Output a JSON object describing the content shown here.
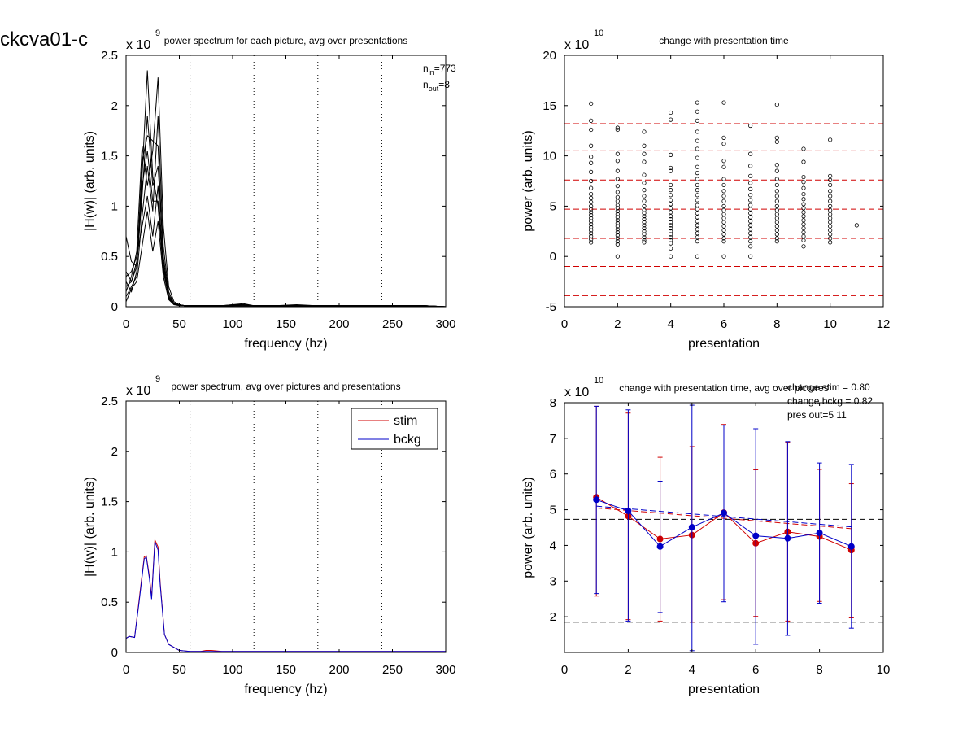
{
  "figure_title": "ckcva01-c",
  "chart_data": [
    {
      "id": "tl",
      "type": "line",
      "title": "power spectrum for each picture, avg over presentations",
      "xlabel": "frequency (hz)",
      "ylabel": "|H(w)| (arb. units)",
      "xlim": [
        0,
        300
      ],
      "ylim": [
        0,
        2.5
      ],
      "x_ticks": [
        "0",
        "50",
        "100",
        "150",
        "200",
        "250",
        "300"
      ],
      "y_ticks": [
        "0",
        "0.5",
        "1",
        "1.5",
        "2",
        "2.5"
      ],
      "y_exponent": "x 10",
      "y_exponent_power": "9",
      "vlines_x": [
        60,
        120,
        180,
        240,
        300
      ],
      "annotations": [
        {
          "base": "n",
          "sub": "in",
          "rest": "=773"
        },
        {
          "base": "n",
          "sub": "out",
          "rest": "=8"
        }
      ],
      "x": [
        0,
        5,
        10,
        15,
        20,
        25,
        30,
        35,
        40,
        45,
        50,
        55,
        60,
        70,
        80,
        90,
        100,
        110,
        120,
        140,
        160,
        180,
        200,
        220,
        240,
        260,
        280,
        300
      ],
      "series": [
        {
          "values": [
            0.35,
            0.25,
            0.45,
            1.3,
            2.35,
            1.3,
            1.0,
            0.35,
            0.1,
            0.03,
            0.02,
            0.01,
            0.01,
            0.01,
            0.01,
            0.01,
            0.01,
            0.02,
            0.01,
            0.01,
            0.01,
            0.01,
            0.01,
            0.01,
            0.01,
            0.01,
            0.01,
            0.0
          ]
        },
        {
          "values": [
            0.15,
            0.3,
            0.55,
            1.6,
            1.2,
            1.55,
            2.28,
            0.8,
            0.2,
            0.05,
            0.02,
            0.01,
            0.01,
            0.01,
            0.01,
            0.01,
            0.02,
            0.03,
            0.01,
            0.01,
            0.01,
            0.01,
            0.01,
            0.01,
            0.01,
            0.01,
            0.01,
            0.0
          ]
        },
        {
          "values": [
            0.7,
            0.45,
            0.4,
            1.1,
            1.9,
            1.2,
            1.4,
            0.5,
            0.12,
            0.03,
            0.02,
            0.01,
            0.01,
            0.01,
            0.01,
            0.01,
            0.01,
            0.02,
            0.01,
            0.01,
            0.02,
            0.01,
            0.01,
            0.01,
            0.01,
            0.01,
            0.01,
            0.0
          ]
        },
        {
          "values": [
            0.1,
            0.2,
            0.3,
            0.9,
            1.4,
            0.95,
            1.9,
            0.6,
            0.15,
            0.03,
            0.02,
            0.01,
            0.01,
            0.01,
            0.01,
            0.01,
            0.01,
            0.01,
            0.01,
            0.01,
            0.01,
            0.01,
            0.01,
            0.01,
            0.01,
            0.01,
            0.01,
            0.0
          ]
        },
        {
          "values": [
            0.25,
            0.15,
            0.35,
            1.45,
            1.7,
            1.65,
            1.6,
            0.45,
            0.08,
            0.02,
            0.02,
            0.01,
            0.01,
            0.01,
            0.01,
            0.01,
            0.02,
            0.02,
            0.01,
            0.01,
            0.01,
            0.01,
            0.01,
            0.01,
            0.01,
            0.01,
            0.01,
            0.0
          ]
        },
        {
          "values": [
            0.3,
            0.35,
            0.5,
            0.8,
            1.1,
            0.7,
            1.2,
            0.4,
            0.1,
            0.03,
            0.02,
            0.01,
            0.01,
            0.01,
            0.01,
            0.01,
            0.01,
            0.01,
            0.01,
            0.01,
            0.01,
            0.01,
            0.01,
            0.01,
            0.01,
            0.01,
            0.01,
            0.0
          ]
        },
        {
          "values": [
            0.2,
            0.25,
            0.4,
            1.2,
            1.55,
            1.05,
            1.05,
            0.38,
            0.09,
            0.02,
            0.02,
            0.01,
            0.01,
            0.01,
            0.01,
            0.01,
            0.01,
            0.01,
            0.01,
            0.01,
            0.01,
            0.01,
            0.01,
            0.01,
            0.01,
            0.01,
            0.01,
            0.0
          ]
        },
        {
          "values": [
            0.05,
            0.18,
            0.25,
            0.6,
            0.95,
            0.55,
            0.85,
            0.3,
            0.07,
            0.02,
            0.01,
            0.01,
            0.01,
            0.01,
            0.01,
            0.01,
            0.01,
            0.01,
            0.01,
            0.01,
            0.01,
            0.01,
            0.01,
            0.01,
            0.01,
            0.01,
            0.01,
            0.0
          ]
        }
      ]
    },
    {
      "id": "tr",
      "type": "scatter",
      "title": "change with presentation time",
      "xlabel": "presentation",
      "ylabel": "power (arb. units)",
      "xlim": [
        0,
        12
      ],
      "ylim": [
        -5,
        20
      ],
      "x_ticks": [
        "0",
        "2",
        "4",
        "6",
        "8",
        "10",
        "12"
      ],
      "y_ticks": [
        "-5",
        "0",
        "5",
        "10",
        "15",
        "20"
      ],
      "y_exponent": "x 10",
      "y_exponent_power": "10",
      "hlines_y": [
        13.2,
        10.5,
        7.6,
        4.7,
        1.8,
        -1.0,
        -3.9
      ],
      "points": [
        {
          "x": 1,
          "values": [
            15.2,
            13.5,
            12.6,
            11.0,
            9.9,
            9.3,
            8.4,
            7.5,
            6.8,
            6.2,
            5.8,
            5.4,
            5.0,
            4.7,
            4.4,
            4.1,
            3.8,
            3.5,
            3.2,
            2.9,
            2.6,
            2.3,
            2.0,
            1.7,
            1.4
          ]
        },
        {
          "x": 2,
          "values": [
            12.8,
            12.6,
            10.2,
            9.5,
            8.5,
            7.7,
            7.0,
            6.4,
            5.9,
            5.5,
            5.1,
            4.8,
            4.5,
            4.2,
            3.9,
            3.6,
            3.3,
            3.0,
            2.7,
            2.4,
            2.1,
            1.8,
            1.5,
            1.2,
            0.0
          ]
        },
        {
          "x": 3,
          "values": [
            12.4,
            11.0,
            10.2,
            9.4,
            8.1,
            7.3,
            6.6,
            6.0,
            5.5,
            5.0,
            4.6,
            4.3,
            4.0,
            3.7,
            3.4,
            3.1,
            2.8,
            2.5,
            2.2,
            1.9,
            1.6,
            1.4
          ]
        },
        {
          "x": 4,
          "values": [
            14.3,
            13.6,
            10.1,
            8.8,
            8.5,
            7.1,
            6.6,
            6.1,
            5.6,
            5.2,
            4.8,
            4.4,
            4.0,
            3.7,
            3.4,
            3.1,
            2.8,
            2.5,
            2.2,
            1.9,
            1.6,
            1.3,
            0.8,
            0.0
          ]
        },
        {
          "x": 5,
          "values": [
            15.3,
            14.4,
            13.5,
            12.4,
            11.5,
            10.7,
            9.8,
            8.9,
            8.3,
            7.7,
            7.1,
            6.6,
            6.1,
            5.6,
            5.1,
            4.7,
            4.3,
            3.9,
            3.5,
            3.1,
            2.7,
            2.3,
            1.9,
            1.5,
            0.0
          ]
        },
        {
          "x": 6,
          "values": [
            15.3,
            11.8,
            11.2,
            9.5,
            8.9,
            7.7,
            7.1,
            6.5,
            6.0,
            5.5,
            5.0,
            4.6,
            4.2,
            3.8,
            3.4,
            3.0,
            2.6,
            2.2,
            1.8,
            1.5,
            0.0
          ]
        },
        {
          "x": 7,
          "values": [
            13.0,
            10.2,
            9.0,
            8.0,
            7.3,
            6.7,
            6.1,
            5.6,
            5.1,
            4.7,
            4.3,
            3.9,
            3.5,
            3.1,
            2.7,
            2.3,
            1.9,
            1.5,
            1.0,
            0.0
          ]
        },
        {
          "x": 8,
          "values": [
            15.1,
            11.8,
            11.4,
            9.1,
            8.5,
            7.7,
            7.1,
            6.5,
            6.0,
            5.5,
            5.0,
            4.6,
            4.2,
            3.8,
            3.4,
            3.0,
            2.6,
            2.2,
            1.8,
            1.5
          ]
        },
        {
          "x": 9,
          "values": [
            10.7,
            9.4,
            7.9,
            7.4,
            6.8,
            6.2,
            5.7,
            5.2,
            4.8,
            4.4,
            4.0,
            3.6,
            3.2,
            2.8,
            2.4,
            2.0,
            1.6,
            1.0
          ]
        },
        {
          "x": 10,
          "values": [
            11.6,
            8.0,
            7.6,
            7.1,
            6.5,
            6.0,
            5.5,
            5.0,
            4.6,
            4.2,
            3.8,
            3.4,
            3.0,
            2.6,
            2.2,
            1.8,
            1.4
          ]
        },
        {
          "x": 11,
          "values": [
            3.1
          ]
        }
      ]
    },
    {
      "id": "bl",
      "type": "line",
      "title": "power spectrum, avg over pictures and presentations",
      "xlabel": "frequency (hz)",
      "ylabel": "|H(w)| (arb. units)",
      "xlim": [
        0,
        300
      ],
      "ylim": [
        0,
        2.5
      ],
      "x_ticks": [
        "0",
        "50",
        "100",
        "150",
        "200",
        "250",
        "300"
      ],
      "y_ticks": [
        "0",
        "0.5",
        "1",
        "1.5",
        "2",
        "2.5"
      ],
      "y_exponent": "x 10",
      "y_exponent_power": "9",
      "vlines_x": [
        60,
        120,
        180,
        240,
        300
      ],
      "legend": [
        "stim",
        "bckg"
      ],
      "x": [
        0,
        3,
        8,
        12,
        17,
        19,
        22,
        24,
        27,
        30,
        32,
        36,
        40,
        50,
        60,
        70,
        75,
        80,
        90,
        100,
        150,
        200,
        250,
        300
      ],
      "series": [
        {
          "name": "stim",
          "color": "#d00000",
          "values": [
            0.14,
            0.16,
            0.15,
            0.5,
            0.95,
            0.96,
            0.75,
            0.55,
            1.12,
            1.05,
            0.7,
            0.18,
            0.08,
            0.02,
            0.01,
            0.01,
            0.02,
            0.02,
            0.01,
            0.01,
            0.01,
            0.01,
            0.01,
            0.01
          ]
        },
        {
          "name": "bckg",
          "color": "#0000c8",
          "values": [
            0.14,
            0.16,
            0.15,
            0.48,
            0.93,
            0.95,
            0.73,
            0.53,
            1.1,
            1.02,
            0.68,
            0.18,
            0.08,
            0.02,
            0.01,
            0.01,
            0.01,
            0.01,
            0.01,
            0.01,
            0.01,
            0.01,
            0.01,
            0.01
          ]
        }
      ]
    },
    {
      "id": "br",
      "type": "line",
      "title": "change with presentation time, avg over pictures",
      "xlabel": "presentation",
      "ylabel": "power (arb. units)",
      "xlim": [
        0,
        10
      ],
      "ylim": [
        1,
        8
      ],
      "x_ticks": [
        "0",
        "2",
        "4",
        "6",
        "8",
        "10"
      ],
      "y_ticks": [
        "2",
        "3",
        "4",
        "5",
        "6",
        "7",
        "8"
      ],
      "y_exponent": "x 10",
      "y_exponent_power": "10",
      "hlines_y": [
        7.6,
        4.73,
        1.85
      ],
      "annotations": [
        "change stim = 0.80",
        "change bckg = 0.82",
        "pres out=5 11"
      ],
      "x": [
        1,
        2,
        3,
        4,
        5,
        6,
        7,
        8,
        9
      ],
      "series": [
        {
          "name": "stim",
          "color": "#d00000",
          "values": [
            5.35,
            4.82,
            4.18,
            4.29,
            4.92,
            4.06,
            4.38,
            4.25,
            3.87
          ],
          "err_low": [
            2.58,
            1.92,
            1.88,
            1.85,
            2.48,
            2.01,
            1.88,
            2.43,
            1.97
          ],
          "err_high": [
            7.9,
            7.71,
            6.47,
            6.77,
            7.39,
            6.12,
            6.89,
            6.13,
            5.73
          ],
          "trend": [
            5.05,
            4.47
          ]
        },
        {
          "name": "bckg",
          "color": "#0000c8",
          "values": [
            5.28,
            4.97,
            3.97,
            4.51,
            4.91,
            4.27,
            4.2,
            4.35,
            3.97
          ],
          "err_low": [
            2.65,
            1.88,
            2.12,
            1.05,
            2.42,
            1.23,
            1.48,
            2.38,
            1.68
          ],
          "err_high": [
            7.9,
            7.8,
            5.8,
            7.93,
            7.37,
            7.27,
            6.91,
            6.31,
            6.27
          ],
          "trend": [
            5.1,
            4.52
          ]
        }
      ]
    }
  ]
}
